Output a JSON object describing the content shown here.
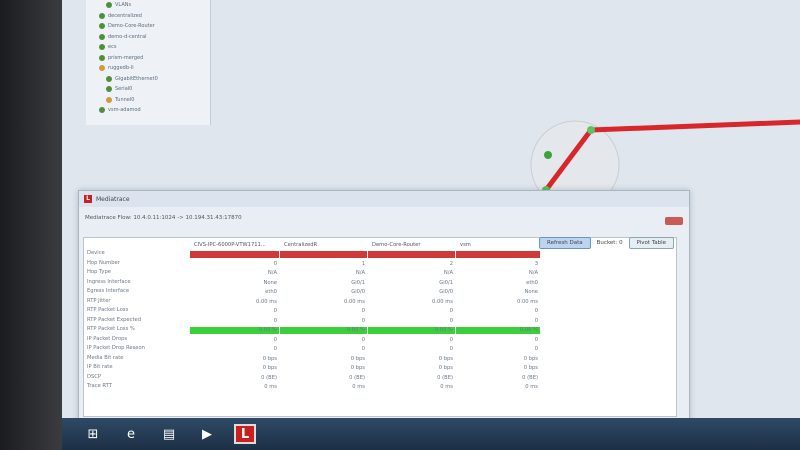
{
  "tree": {
    "items": [
      {
        "label": "VLANs",
        "status": "green",
        "indent": 2
      },
      {
        "label": "decentralized",
        "status": "green",
        "indent": 1
      },
      {
        "label": "Demo-Core-Router",
        "status": "green",
        "indent": 1
      },
      {
        "label": "demo-d-central",
        "status": "green",
        "indent": 1
      },
      {
        "label": "ecs",
        "status": "green",
        "indent": 1
      },
      {
        "label": "prism-merged",
        "status": "green",
        "indent": 1
      },
      {
        "label": "ruggedb-ll",
        "status": "orange",
        "indent": 1
      },
      {
        "label": "GigabitEthernet0",
        "status": "green",
        "indent": 2
      },
      {
        "label": "Serial0",
        "status": "green",
        "indent": 2
      },
      {
        "label": "Tunnel0",
        "status": "orange",
        "indent": 2
      },
      {
        "label": "vsm-adamod",
        "status": "green",
        "indent": 1
      }
    ]
  },
  "dialog": {
    "title": "Mediatrace",
    "flow": "Mediatrace Flow: 10.4.0.11:1024 -> 10.194.31.43:17870",
    "refresh_label": "Refresh Data",
    "bucket_label": "Bucket: 0",
    "pivot_label": "Pivot Table",
    "row_labels": [
      "Device",
      "Hop Number",
      "Hop Type",
      "Ingress Interface",
      "Egress Interface",
      "RTP Jitter",
      "RTP Packet Loss",
      "RTP Packet Expected",
      "RTP Packet Loss %",
      "IP Packet Drops",
      "IP Packet Drop Reason",
      "Media Bit rate",
      "IP Bit rate",
      "DSCP",
      "Trace RTT"
    ],
    "columns": [
      {
        "header": "CIVS-IPC-6000P-VTW1711...",
        "values": [
          "0",
          "N/A",
          "None",
          "eth0",
          "0.00 ms",
          "0",
          "0",
          "0.00 %",
          "0",
          "0",
          "0 bps",
          "0 bps",
          "0 (BE)",
          "0 ms"
        ]
      },
      {
        "header": "CentralizedR",
        "values": [
          "1",
          "N/A",
          "Gi0/1",
          "Gi0/0",
          "0.00 ms",
          "0",
          "0",
          "0.00 %",
          "0",
          "0",
          "0 bps",
          "0 bps",
          "0 (BE)",
          "0 ms"
        ]
      },
      {
        "header": "Demo-Core-Router",
        "values": [
          "2",
          "N/A",
          "Gi0/1",
          "Gi0/0",
          "0.00 ms",
          "0",
          "0",
          "0.00 %",
          "0",
          "0",
          "0 bps",
          "0 bps",
          "0 (BE)",
          "0 ms"
        ]
      },
      {
        "header": "vsm",
        "values": [
          "3",
          "N/A",
          "eth0",
          "None",
          "0.00 ms",
          "0",
          "0",
          "0.00 %",
          "0",
          "0",
          "0 bps",
          "0 bps",
          "0 (BE)",
          "0 ms"
        ]
      }
    ],
    "colors": {
      "critical": "#d0393a",
      "ok": "#3ccf3c"
    }
  },
  "taskbar": {
    "items": [
      {
        "icon": "windows-start-icon"
      },
      {
        "icon": "internet-explorer-icon"
      },
      {
        "icon": "file-explorer-icon"
      },
      {
        "icon": "media-player-icon"
      },
      {
        "icon": "app-l-icon",
        "label": "L"
      }
    ]
  }
}
